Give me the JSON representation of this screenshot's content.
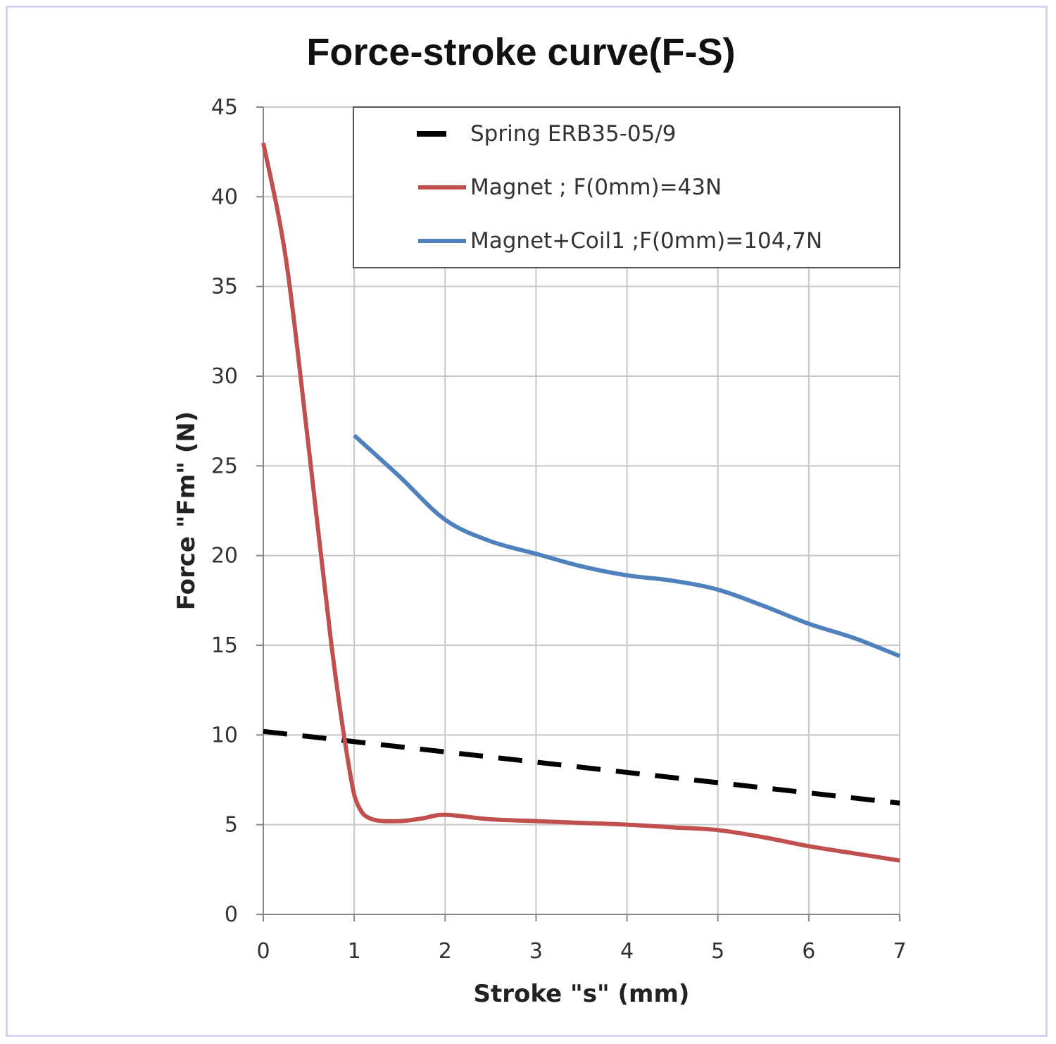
{
  "chart_data": {
    "type": "line",
    "title": "Force-stroke curve(F-S)",
    "xlabel": "Stroke \"s\" (mm)",
    "ylabel": "Force \"Fm\" (N)",
    "xlim": [
      0,
      7
    ],
    "ylim": [
      0,
      45
    ],
    "x_ticks": [
      0,
      1,
      2,
      3,
      4,
      5,
      6,
      7
    ],
    "y_ticks": [
      0,
      5,
      10,
      15,
      20,
      25,
      30,
      35,
      40,
      45
    ],
    "grid": true,
    "legend_position": "top-right",
    "series": [
      {
        "name": "Spring ERB35-05/9",
        "color": "#000000",
        "style": "dashed",
        "x": [
          0,
          7
        ],
        "y": [
          10.2,
          6.2
        ]
      },
      {
        "name": "Magnet ; F(0mm)=43N",
        "color": "#c0504d",
        "style": "solid",
        "x": [
          0,
          0.25,
          0.5,
          0.75,
          0.95,
          1.05,
          1.2,
          1.5,
          1.75,
          2,
          2.5,
          3,
          3.5,
          4,
          4.5,
          5,
          5.5,
          6,
          6.5,
          7
        ],
        "y": [
          43,
          36.5,
          26,
          15,
          8,
          6,
          5.3,
          5.2,
          5.35,
          5.55,
          5.3,
          5.2,
          5.1,
          5.0,
          4.85,
          4.7,
          4.3,
          3.8,
          3.4,
          3.0
        ]
      },
      {
        "name": "Magnet+Coil1 ;F(0mm)=104,7N",
        "color": "#4f81bd",
        "style": "solid",
        "x": [
          1,
          1.5,
          2,
          2.5,
          3,
          3.5,
          4,
          4.5,
          5,
          5.5,
          6,
          6.5,
          7
        ],
        "y": [
          26.7,
          24.4,
          22.0,
          20.8,
          20.1,
          19.4,
          18.9,
          18.6,
          18.1,
          17.2,
          16.2,
          15.4,
          14.4
        ]
      }
    ]
  }
}
